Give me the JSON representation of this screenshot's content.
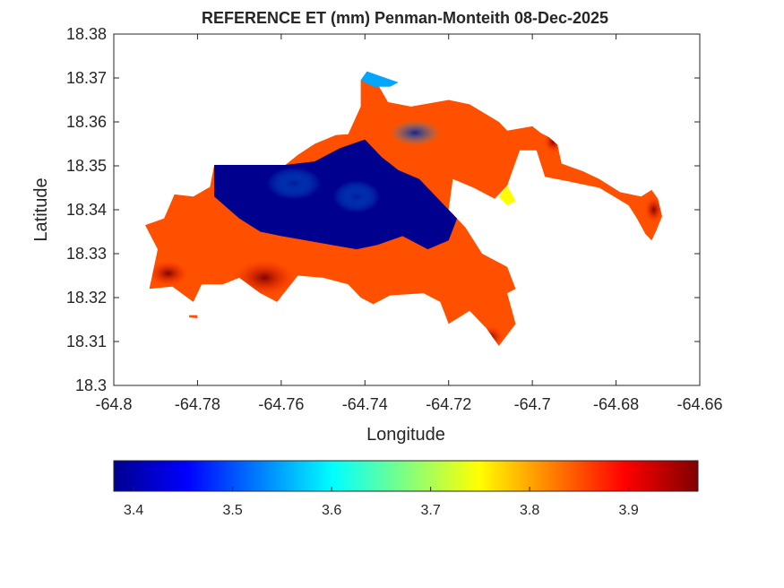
{
  "chart_data": {
    "type": "heatmap",
    "title": "REFERENCE ET (mm) Penman-Monteith 08-Dec-2025",
    "xlabel": "Longitude",
    "ylabel": "Latitude",
    "xlim": [
      -64.8,
      -64.66
    ],
    "ylim": [
      18.3,
      18.38
    ],
    "x_ticks": [
      "-64.8",
      "-64.78",
      "-64.76",
      "-64.74",
      "-64.72",
      "-64.7",
      "-64.68",
      "-64.66"
    ],
    "y_ticks": [
      "18.3",
      "18.31",
      "18.32",
      "18.33",
      "18.34",
      "18.35",
      "18.36",
      "18.37",
      "18.38"
    ],
    "grid": false,
    "colormap": "jet",
    "colorbar": {
      "orientation": "horizontal",
      "placement": "bottom",
      "range": [
        3.38,
        3.97
      ],
      "ticks": [
        "3.4",
        "3.5",
        "3.6",
        "3.7",
        "3.8",
        "3.9"
      ]
    },
    "regions": [
      {
        "name": "",
        "value": 3.85,
        "outline": [
          [
            -64.7925,
            18.3365
          ],
          [
            -64.788,
            18.338
          ],
          [
            -64.7855,
            18.3435
          ],
          [
            -64.781,
            18.343
          ],
          [
            -64.777,
            18.3452
          ],
          [
            -64.776,
            18.3502
          ],
          [
            -64.769,
            18.3502
          ],
          [
            -64.759,
            18.3502
          ],
          [
            -64.756,
            18.3525
          ],
          [
            -64.752,
            18.355
          ],
          [
            -64.747,
            18.357
          ],
          [
            -64.744,
            18.3572
          ],
          [
            -64.741,
            18.3635
          ],
          [
            -64.741,
            18.3695
          ],
          [
            -64.7395,
            18.3715
          ],
          [
            -64.7375,
            18.3695
          ],
          [
            -64.7345,
            18.3645
          ],
          [
            -64.729,
            18.3635
          ],
          [
            -64.72,
            18.365
          ],
          [
            -64.715,
            18.364
          ],
          [
            -64.708,
            18.36
          ],
          [
            -64.706,
            18.358
          ],
          [
            -64.7,
            18.359
          ],
          [
            -64.698,
            18.3575
          ],
          [
            -64.696,
            18.3565
          ],
          [
            -64.694,
            18.3548
          ],
          [
            -64.693,
            18.3505
          ],
          [
            -64.688,
            18.3488
          ],
          [
            -64.684,
            18.347
          ],
          [
            -64.679,
            18.344
          ],
          [
            -64.674,
            18.343
          ],
          [
            -64.6715,
            18.3445
          ],
          [
            -64.67,
            18.3425
          ],
          [
            -64.669,
            18.3385
          ],
          [
            -64.6705,
            18.335
          ],
          [
            -64.6715,
            18.333
          ],
          [
            -64.673,
            18.3345
          ],
          [
            -64.675,
            18.338
          ],
          [
            -64.677,
            18.341
          ],
          [
            -64.684,
            18.345
          ],
          [
            -64.6915,
            18.3465
          ],
          [
            -64.697,
            18.3475
          ],
          [
            -64.699,
            18.3535
          ],
          [
            -64.703,
            18.3535
          ],
          [
            -64.706,
            18.3455
          ],
          [
            -64.709,
            18.3425
          ],
          [
            -64.714,
            18.345
          ],
          [
            -64.719,
            18.347
          ],
          [
            -64.72,
            18.34
          ],
          [
            -64.716,
            18.336
          ],
          [
            -64.712,
            18.33
          ],
          [
            -64.706,
            18.327
          ],
          [
            -64.704,
            18.322
          ],
          [
            -64.706,
            18.321
          ],
          [
            -64.704,
            18.314
          ],
          [
            -64.708,
            18.309
          ],
          [
            -64.711,
            18.313
          ],
          [
            -64.715,
            18.317
          ],
          [
            -64.72,
            18.314
          ],
          [
            -64.722,
            18.319
          ],
          [
            -64.726,
            18.321
          ],
          [
            -64.734,
            18.3205
          ],
          [
            -64.738,
            18.3185
          ],
          [
            -64.741,
            18.32
          ],
          [
            -64.744,
            18.323
          ],
          [
            -64.75,
            18.3245
          ],
          [
            -64.756,
            18.325
          ],
          [
            -64.761,
            18.319
          ],
          [
            -64.765,
            18.321
          ],
          [
            -64.77,
            18.3245
          ],
          [
            -64.774,
            18.323
          ],
          [
            -64.779,
            18.323
          ],
          [
            -64.781,
            18.319
          ],
          [
            -64.786,
            18.3225
          ],
          [
            -64.7915,
            18.322
          ],
          [
            -64.7895,
            18.331
          ],
          [
            -64.7925,
            18.3365
          ]
        ]
      },
      {
        "name": "",
        "value": 3.38,
        "outline": [
          [
            -64.776,
            18.3502
          ],
          [
            -64.769,
            18.3502
          ],
          [
            -64.759,
            18.3502
          ],
          [
            -64.752,
            18.351
          ],
          [
            -64.746,
            18.354
          ],
          [
            -64.74,
            18.356
          ],
          [
            -64.736,
            18.352
          ],
          [
            -64.732,
            18.349
          ],
          [
            -64.727,
            18.347
          ],
          [
            -64.722,
            18.342
          ],
          [
            -64.718,
            18.338
          ],
          [
            -64.72,
            18.333
          ],
          [
            -64.725,
            18.331
          ],
          [
            -64.731,
            18.334
          ],
          [
            -64.737,
            18.332
          ],
          [
            -64.742,
            18.331
          ],
          [
            -64.748,
            18.332
          ],
          [
            -64.754,
            18.333
          ],
          [
            -64.76,
            18.334
          ],
          [
            -64.765,
            18.335
          ],
          [
            -64.77,
            18.338
          ],
          [
            -64.776,
            18.343
          ],
          [
            -64.776,
            18.3502
          ]
        ]
      },
      {
        "name": "",
        "value": 3.55,
        "outline": [
          [
            -64.741,
            18.3695
          ],
          [
            -64.7395,
            18.3715
          ],
          [
            -64.735,
            18.37
          ],
          [
            -64.732,
            18.369
          ],
          [
            -64.734,
            18.368
          ],
          [
            -64.738,
            18.368
          ],
          [
            -64.741,
            18.3695
          ]
        ]
      },
      {
        "name": "",
        "value": 3.75,
        "outline": [
          [
            -64.706,
            18.3455
          ],
          [
            -64.704,
            18.342
          ],
          [
            -64.706,
            18.341
          ],
          [
            -64.708,
            18.343
          ],
          [
            -64.706,
            18.3455
          ]
        ]
      },
      {
        "name": "",
        "value": 3.85,
        "outline": [
          [
            -64.782,
            18.3155
          ],
          [
            -64.78,
            18.3153
          ],
          [
            -64.78,
            18.316
          ],
          [
            -64.782,
            18.316
          ],
          [
            -64.782,
            18.3155
          ]
        ]
      }
    ]
  }
}
